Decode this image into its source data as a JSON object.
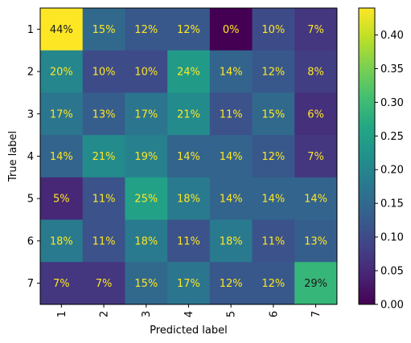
{
  "chart_data": {
    "type": "heatmap",
    "title": "",
    "xlabel": "Predicted label",
    "ylabel": "True label",
    "x_categories": [
      "1",
      "2",
      "3",
      "4",
      "5",
      "6",
      "7"
    ],
    "y_categories": [
      "1",
      "2",
      "3",
      "4",
      "5",
      "6",
      "7"
    ],
    "values": [
      [
        0.44,
        0.15,
        0.12,
        0.12,
        0.0,
        0.1,
        0.07
      ],
      [
        0.2,
        0.1,
        0.1,
        0.24,
        0.14,
        0.12,
        0.08
      ],
      [
        0.17,
        0.13,
        0.17,
        0.21,
        0.11,
        0.15,
        0.06
      ],
      [
        0.14,
        0.21,
        0.19,
        0.14,
        0.14,
        0.12,
        0.07
      ],
      [
        0.05,
        0.11,
        0.25,
        0.18,
        0.14,
        0.14,
        0.14
      ],
      [
        0.18,
        0.11,
        0.18,
        0.11,
        0.18,
        0.11,
        0.13
      ],
      [
        0.07,
        0.07,
        0.15,
        0.17,
        0.12,
        0.12,
        0.29
      ]
    ],
    "cell_labels": [
      [
        "44%",
        "15%",
        "12%",
        "12%",
        "0%",
        "10%",
        "7%"
      ],
      [
        "20%",
        "10%",
        "10%",
        "24%",
        "14%",
        "12%",
        "8%"
      ],
      [
        "17%",
        "13%",
        "17%",
        "21%",
        "11%",
        "15%",
        "6%"
      ],
      [
        "14%",
        "21%",
        "19%",
        "14%",
        "14%",
        "12%",
        "7%"
      ],
      [
        "5%",
        "11%",
        "25%",
        "18%",
        "14%",
        "14%",
        "14%"
      ],
      [
        "18%",
        "11%",
        "18%",
        "11%",
        "18%",
        "11%",
        "13%"
      ],
      [
        "7%",
        "7%",
        "15%",
        "17%",
        "12%",
        "12%",
        "29%"
      ]
    ],
    "colormap": "viridis",
    "color_range": [
      0.0,
      0.44
    ],
    "colorbar": {
      "ticks": [
        0.0,
        0.05,
        0.1,
        0.15,
        0.2,
        0.25,
        0.3,
        0.35,
        0.4
      ],
      "tick_labels": [
        "0.00",
        "0.05",
        "0.10",
        "0.15",
        "0.20",
        "0.25",
        "0.30",
        "0.35",
        "0.40"
      ]
    },
    "grid": false,
    "x_tick_rotation": "vertical",
    "text_colors": {
      "light": "#fde725",
      "dark": "#1a1a1a"
    }
  }
}
